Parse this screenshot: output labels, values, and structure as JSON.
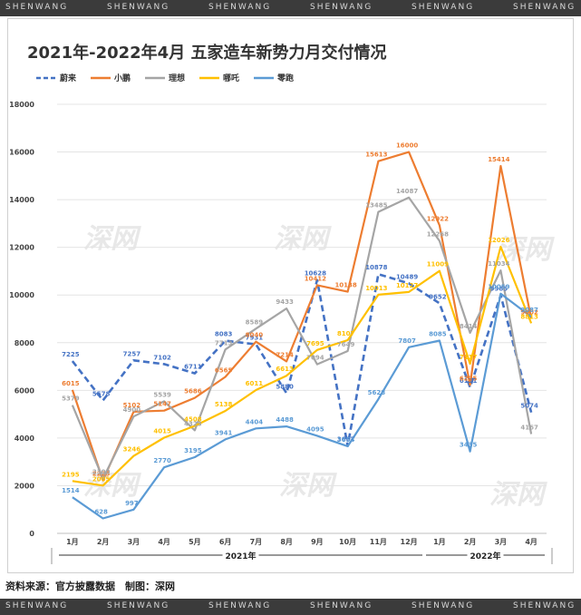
{
  "watermark": "SHENWANG",
  "title": "2021年-2022年4月 五家造车新势力月交付情况",
  "source": "资料来源：官方披露数据　制图：深网",
  "logo_text": "深网",
  "chart_data": {
    "type": "line",
    "categories": [
      "1月",
      "2月",
      "3月",
      "4月",
      "5月",
      "6月",
      "7月",
      "8月",
      "9月",
      "10月",
      "11月",
      "12月",
      "1月",
      "2月",
      "3月",
      "4月"
    ],
    "year_groups": [
      {
        "label": "2021年",
        "start": 0,
        "end": 11
      },
      {
        "label": "2022年",
        "start": 12,
        "end": 15
      }
    ],
    "ylim": [
      0,
      18000
    ],
    "yticks": [
      0,
      2000,
      4000,
      6000,
      8000,
      10000,
      12000,
      14000,
      16000,
      18000
    ],
    "grid": true,
    "legend_position": "top-left",
    "series": [
      {
        "name": "蔚来",
        "color": "#4472c4",
        "dashed": true,
        "values": [
          7225,
          5578,
          7257,
          7102,
          6711,
          8083,
          7931,
          5880,
          10628,
          3667,
          10878,
          10489,
          9652,
          6131,
          9985,
          5074
        ]
      },
      {
        "name": "小鹏",
        "color": "#ed7d31",
        "dashed": false,
        "values": [
          6015,
          2223,
          5102,
          5147,
          5686,
          6565,
          8040,
          7214,
          10412,
          10138,
          15613,
          16000,
          12922,
          6225,
          15414,
          9002
        ]
      },
      {
        "name": "理想",
        "color": "#a5a5a5",
        "dashed": false,
        "values": [
          5379,
          2300,
          4900,
          5539,
          4323,
          7713,
          8589,
          9433,
          7094,
          7649,
          13485,
          14087,
          12268,
          8414,
          11034,
          4167
        ]
      },
      {
        "name": "哪吒",
        "color": "#ffc000",
        "dashed": false,
        "values": [
          2195,
          2005,
          3246,
          4015,
          4508,
          5138,
          6011,
          6613,
          7695,
          8107,
          10013,
          10127,
          11009,
          7117,
          12026,
          8813
        ]
      },
      {
        "name": "零跑",
        "color": "#5b9bd5",
        "dashed": false,
        "values": [
          1514,
          628,
          997,
          2770,
          3195,
          3941,
          4404,
          4488,
          4095,
          3654,
          5628,
          7807,
          8085,
          3435,
          10059,
          9087
        ]
      }
    ]
  }
}
